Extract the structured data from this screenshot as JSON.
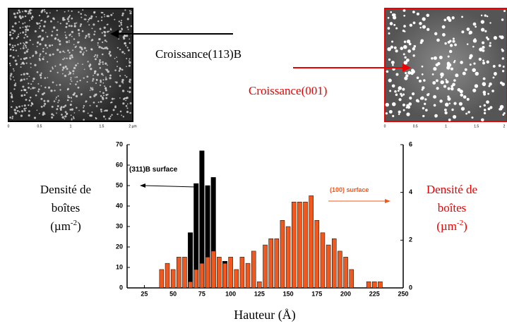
{
  "chart_data": {
    "type": "bar",
    "x": [
      40,
      45,
      50,
      55,
      60,
      65,
      70,
      75,
      80,
      85,
      90,
      95,
      100,
      105,
      110,
      115,
      120,
      125,
      130,
      135,
      140,
      145,
      150,
      155,
      160,
      165,
      170,
      175,
      180,
      185,
      190,
      195,
      200,
      205,
      210,
      215,
      220,
      225,
      230
    ],
    "series": [
      {
        "name": "(311)B surface",
        "color": "#000000",
        "axis": "y",
        "values": [
          null,
          null,
          null,
          null,
          null,
          27,
          51,
          67,
          50,
          54,
          null,
          13,
          null,
          null,
          null,
          null,
          null,
          null,
          null,
          null,
          null,
          null,
          null,
          null,
          null,
          null,
          null,
          null,
          null,
          null,
          null,
          null,
          null,
          null,
          null,
          null,
          null,
          null,
          null
        ]
      },
      {
        "name": "(100) surface",
        "color": "#f0581e",
        "axis": "y2",
        "values": [
          0.77,
          1.03,
          0.77,
          1.29,
          1.29,
          0.26,
          0.77,
          1.03,
          1.29,
          1.54,
          1.29,
          1.03,
          1.29,
          0.77,
          1.29,
          1.03,
          1.54,
          0.26,
          1.8,
          2.06,
          2.06,
          2.83,
          2.57,
          3.6,
          3.6,
          3.6,
          3.86,
          2.83,
          2.31,
          1.8,
          2.06,
          1.54,
          1.29,
          0.77,
          null,
          null,
          0.26,
          0.26,
          0.26
        ]
      }
    ],
    "xlabel": "Hauteur (Å)",
    "xlim": [
      10,
      250
    ],
    "xticks": [
      25,
      50,
      75,
      100,
      125,
      150,
      175,
      200,
      225,
      250
    ],
    "ylim": [
      0,
      70
    ],
    "yticks": [
      0,
      10,
      20,
      30,
      40,
      50,
      60,
      70
    ],
    "y2lim": [
      0,
      6
    ],
    "y2ticks": [
      0,
      2,
      4,
      6
    ],
    "ylabel": {
      "lines": [
        "Densité de",
        "boîtes"
      ],
      "unit_open": "(µm",
      "exponent": "-2",
      "unit_close": ")"
    },
    "y2label": {
      "lines": [
        "Densité de",
        "boîtes"
      ],
      "unit_open": "(µm",
      "exponent": "-2",
      "unit_close": ")"
    }
  },
  "images": [
    {
      "caption": "Croissance(113)B",
      "scale": [
        "0",
        "0.5",
        "1",
        "1.5",
        "2 µm"
      ]
    },
    {
      "caption": "Croissance(001)",
      "scale": [
        "0",
        "0.5",
        "1",
        "1.5",
        "2"
      ]
    }
  ]
}
